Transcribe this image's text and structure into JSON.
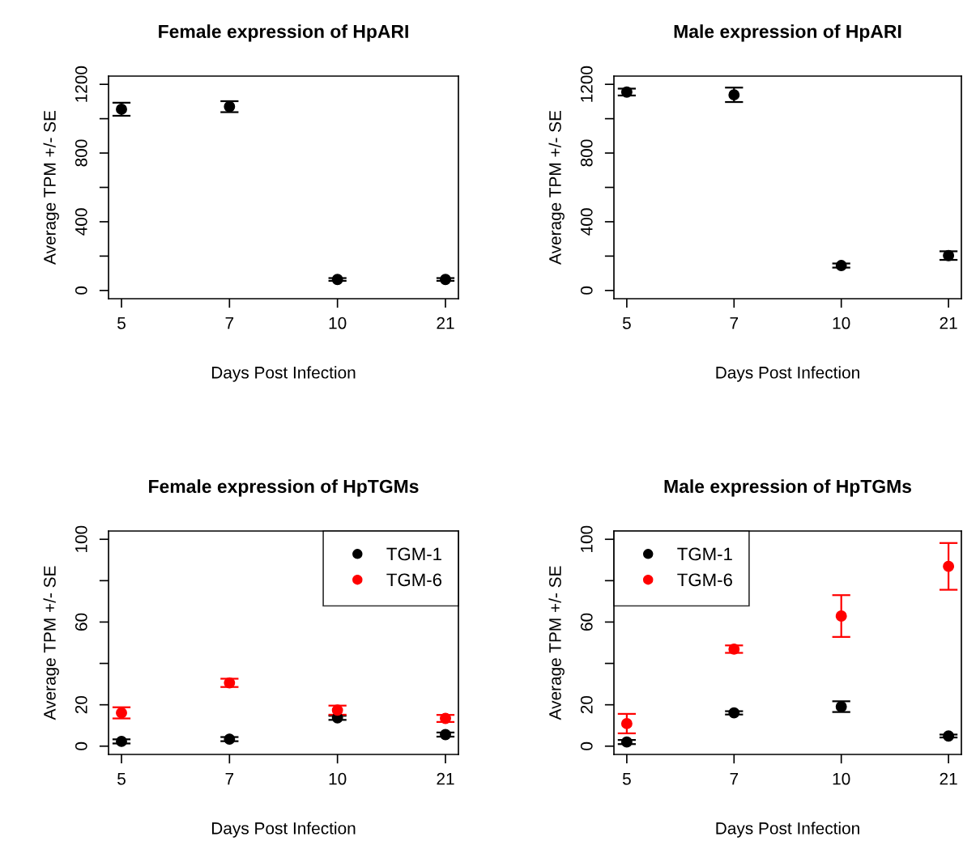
{
  "chart_data": [
    {
      "type": "scatter",
      "title": "Female expression of HpARI",
      "xlabel": "Days Post Infection",
      "ylabel": "Average TPM +/- SE",
      "categories": [
        "5",
        "7",
        "10",
        "21"
      ],
      "ylim": [
        -48,
        1248
      ],
      "yticks": [
        0,
        {
          "value": 200,
          "label": null
        },
        400,
        {
          "value": 600,
          "label": null
        },
        800,
        {
          "value": 1000,
          "label": null
        },
        1200
      ],
      "marker": "circle",
      "grid": false,
      "legend": false,
      "series": [
        {
          "color": "#000000",
          "values": [
            1055,
            1070,
            64,
            64
          ],
          "errors": [
            38,
            32,
            8,
            8
          ]
        }
      ]
    },
    {
      "type": "scatter",
      "title": "Male expression of HpARI",
      "xlabel": "Days Post Infection",
      "ylabel": "Average TPM +/- SE",
      "categories": [
        "5",
        "7",
        "10",
        "21"
      ],
      "ylim": [
        -48,
        1248
      ],
      "yticks": [
        0,
        {
          "value": 200,
          "label": null
        },
        400,
        {
          "value": 600,
          "label": null
        },
        800,
        {
          "value": 1000,
          "label": null
        },
        1200
      ],
      "marker": "circle",
      "grid": false,
      "legend": false,
      "series": [
        {
          "color": "#000000",
          "values": [
            1155,
            1139,
            145,
            203
          ],
          "errors": [
            20,
            42,
            12,
            25
          ]
        }
      ]
    },
    {
      "type": "scatter",
      "title": "Female expression of HpTGMs",
      "xlabel": "Days Post Infection",
      "ylabel": "Average TPM +/- SE",
      "categories": [
        "5",
        "7",
        "10",
        "21"
      ],
      "ylim": [
        -4,
        104
      ],
      "yticks": [
        0,
        20,
        {
          "value": 40,
          "label": null
        },
        60,
        {
          "value": 80,
          "label": null
        },
        100
      ],
      "marker": "circle",
      "grid": false,
      "legend": "top right",
      "series": [
        {
          "name": "TGM-1",
          "color": "#000000",
          "values": [
            2.3,
            3.4,
            13.7,
            5.6
          ],
          "errors": [
            1,
            1,
            1,
            1
          ]
        },
        {
          "name": "TGM-6",
          "color": "#ff0000",
          "values": [
            16.1,
            30.6,
            17.4,
            13.4
          ],
          "errors": [
            2.7,
            2,
            2.2,
            1.7
          ]
        }
      ]
    },
    {
      "type": "scatter",
      "title": "Male expression of HpTGMs",
      "xlabel": "Days Post Infection",
      "ylabel": "Average TPM +/- SE",
      "categories": [
        "5",
        "7",
        "10",
        "21"
      ],
      "ylim": [
        -4,
        104
      ],
      "yticks": [
        0,
        20,
        {
          "value": 40,
          "label": null
        },
        60,
        {
          "value": 80,
          "label": null
        },
        100
      ],
      "marker": "circle",
      "grid": false,
      "legend": "top left",
      "series": [
        {
          "name": "TGM-1",
          "color": "#000000",
          "values": [
            2.0,
            16.1,
            19.1,
            4.9
          ],
          "errors": [
            1,
            0.8,
            2.6,
            0.7
          ]
        },
        {
          "name": "TGM-6",
          "color": "#ff0000",
          "values": [
            10.9,
            46.9,
            62.9,
            86.9
          ],
          "errors": [
            4.7,
            1.8,
            10.1,
            11.3
          ]
        }
      ]
    }
  ]
}
